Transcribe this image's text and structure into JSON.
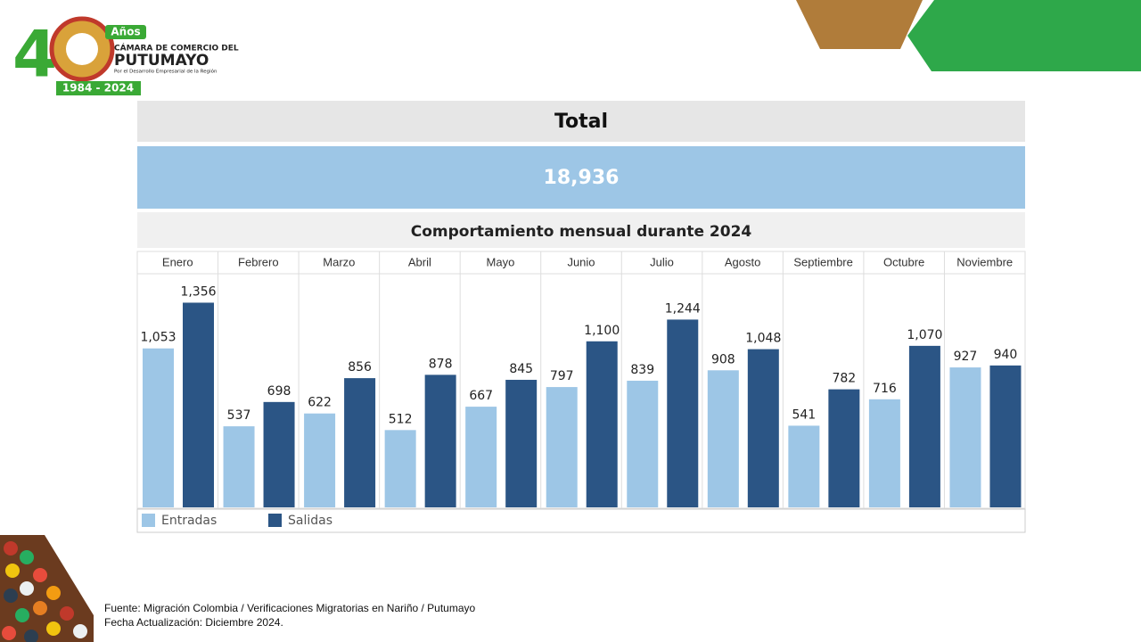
{
  "logo": {
    "digit": "4",
    "badge": "Años",
    "line1": "CÁMARA DE COMERCIO DEL",
    "line2": "PUTUMAYO",
    "tagline": "Por el Desarrollo Empresarial de la Región",
    "years": "1984 - 2024"
  },
  "summary": {
    "title": "Total",
    "value": "18,936"
  },
  "chart_data": {
    "type": "bar",
    "title": "Comportamiento mensual durante 2024",
    "categories": [
      "Enero",
      "Febrero",
      "Marzo",
      "Abril",
      "Mayo",
      "Junio",
      "Julio",
      "Agosto",
      "Septiembre",
      "Octubre",
      "Noviembre"
    ],
    "series": [
      {
        "name": "Entradas",
        "color": "#9dc6e6",
        "values": [
          1053,
          537,
          622,
          512,
          667,
          797,
          839,
          908,
          541,
          716,
          927
        ],
        "value_labels": [
          "1,053",
          "537",
          "622",
          "512",
          "667",
          "797",
          "839",
          "908",
          "541",
          "716",
          "927"
        ]
      },
      {
        "name": "Salidas",
        "color": "#2b5585",
        "values": [
          1356,
          698,
          856,
          878,
          845,
          1100,
          1244,
          1048,
          782,
          1070,
          940
        ],
        "value_labels": [
          "1,356",
          "698",
          "856",
          "878",
          "845",
          "1,100",
          "1,244",
          "1,048",
          "782",
          "1,070",
          "940"
        ]
      }
    ],
    "ylim": [
      0,
      1530
    ]
  },
  "footer": {
    "source": "Fuente: Migración Colombia / Verificaciones Migratorias en Nariño / Putumayo",
    "updated": "Fecha Actualización: Diciembre 2024."
  }
}
